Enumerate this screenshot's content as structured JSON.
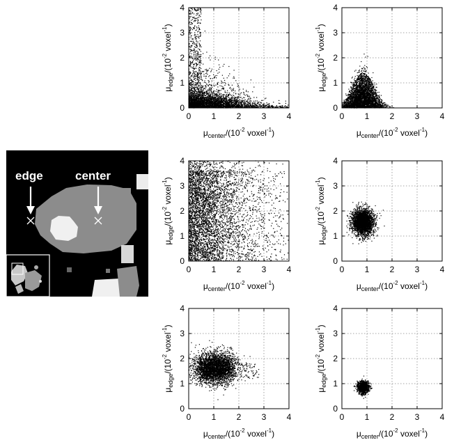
{
  "image_panel": {
    "annotations": {
      "edge_label": "edge",
      "center_label": "center"
    }
  },
  "chart_data": [
    {
      "type": "scatter",
      "xlabel_main": "μ",
      "xlabel_sub": "center",
      "xlabel_unit": "/(10",
      "xlabel_exp": "-2",
      "xlabel_unit2": " voxel",
      "xlabel_exp2": "-1",
      "xlabel_close": ")",
      "ylabel_main": "μ",
      "ylabel_sub": "edge",
      "ylabel_unit": "/(10",
      "ylabel_exp": "-2",
      "ylabel_unit2": " voxel",
      "ylabel_exp2": "-1",
      "ylabel_close": ")",
      "xlim": [
        0,
        4
      ],
      "ylim": [
        0,
        4
      ],
      "xticks": [
        "0",
        "1",
        "2",
        "3",
        "4"
      ],
      "yticks": [
        "0",
        "1",
        "2",
        "3",
        "4"
      ],
      "grid": true,
      "points_count": 4000,
      "distribution": {
        "kind": "corner",
        "x_spread": 1.3,
        "y_spread": 0.55
      }
    },
    {
      "type": "scatter",
      "xlabel_main": "μ",
      "xlabel_sub": "center",
      "xlabel_unit": "/(10",
      "xlabel_exp": "-2",
      "xlabel_unit2": " voxel",
      "xlabel_exp2": "-1",
      "xlabel_close": ")",
      "ylabel_main": "μ",
      "ylabel_sub": "edge",
      "ylabel_unit": "/(10",
      "ylabel_exp": "-2",
      "ylabel_unit2": " voxel",
      "ylabel_exp2": "-1",
      "ylabel_close": ")",
      "xlim": [
        0,
        4
      ],
      "ylim": [
        0,
        4
      ],
      "xticks": [
        "0",
        "1",
        "2",
        "3",
        "4"
      ],
      "yticks": [
        "0",
        "1",
        "2",
        "3",
        "4"
      ],
      "grid": true,
      "points_count": 3500,
      "distribution": {
        "kind": "mound",
        "x_center": 0.85,
        "x_spread": 0.7,
        "y_max": 1.4
      }
    },
    {
      "type": "scatter",
      "xlabel_main": "μ",
      "xlabel_sub": "center",
      "xlabel_unit": "/(10",
      "xlabel_exp": "-2",
      "xlabel_unit2": " voxel",
      "xlabel_exp2": "-1",
      "xlabel_close": ")",
      "ylabel_main": "μ",
      "ylabel_sub": "edge",
      "ylabel_unit": "/(10",
      "ylabel_exp": "-2",
      "ylabel_unit2": " voxel",
      "ylabel_exp2": "-1",
      "ylabel_close": ")",
      "xlim": [
        0,
        4
      ],
      "ylim": [
        0,
        4
      ],
      "xticks": [
        "0",
        "1",
        "2",
        "3",
        "4"
      ],
      "yticks": [
        "0",
        "1",
        "2",
        "3",
        "4"
      ],
      "grid": true,
      "points_count": 4500,
      "distribution": {
        "kind": "band",
        "x_range": [
          0,
          2
        ],
        "y_range": [
          0,
          4
        ]
      }
    },
    {
      "type": "scatter",
      "xlabel_main": "μ",
      "xlabel_sub": "center",
      "xlabel_unit": "/(10",
      "xlabel_exp": "-2",
      "xlabel_unit2": " voxel",
      "xlabel_exp2": "-1",
      "xlabel_close": ")",
      "ylabel_main": "μ",
      "ylabel_sub": "edge",
      "ylabel_unit": "/(10",
      "ylabel_exp": "-2",
      "ylabel_unit2": " voxel",
      "ylabel_exp2": "-1",
      "ylabel_close": ")",
      "xlim": [
        0,
        4
      ],
      "ylim": [
        0,
        4
      ],
      "xticks": [
        "0",
        "1",
        "2",
        "3",
        "4"
      ],
      "yticks": [
        "0",
        "1",
        "2",
        "3",
        "4"
      ],
      "grid": true,
      "points_count": 3000,
      "distribution": {
        "kind": "blob",
        "x_center": 0.85,
        "y_center": 1.55,
        "x_sd": 0.22,
        "y_sd": 0.25
      }
    },
    {
      "type": "scatter",
      "xlabel_main": "μ",
      "xlabel_sub": "center",
      "xlabel_unit": "/(10",
      "xlabel_exp": "-2",
      "xlabel_unit2": " voxel",
      "xlabel_exp2": "-1",
      "xlabel_close": ")",
      "ylabel_main": "μ",
      "ylabel_sub": "edge",
      "ylabel_unit": "/(10",
      "ylabel_exp": "-2",
      "ylabel_unit2": " voxel",
      "ylabel_exp2": "-1",
      "ylabel_close": ")",
      "xlim": [
        0,
        4
      ],
      "ylim": [
        0,
        4
      ],
      "xticks": [
        "0",
        "1",
        "2",
        "3",
        "4"
      ],
      "yticks": [
        "0",
        "1",
        "2",
        "3",
        "4"
      ],
      "grid": true,
      "points_count": 3500,
      "distribution": {
        "kind": "twin",
        "x_centers": [
          0.75,
          1.35
        ],
        "y_center": 1.6,
        "x_sd": 0.3,
        "y_sd": 0.3
      }
    },
    {
      "type": "scatter",
      "xlabel_main": "μ",
      "xlabel_sub": "center",
      "xlabel_unit": "/(10",
      "xlabel_exp": "-2",
      "xlabel_unit2": " voxel",
      "xlabel_exp2": "-1",
      "xlabel_close": ")",
      "ylabel_main": "μ",
      "ylabel_sub": "edge",
      "ylabel_unit": "/(10",
      "ylabel_exp": "-2",
      "ylabel_unit2": " voxel",
      "ylabel_exp2": "-1",
      "ylabel_close": ")",
      "xlim": [
        0,
        4
      ],
      "ylim": [
        0,
        4
      ],
      "xticks": [
        "0",
        "1",
        "2",
        "3",
        "4"
      ],
      "yticks": [
        "0",
        "1",
        "2",
        "3",
        "4"
      ],
      "grid": true,
      "points_count": 1200,
      "distribution": {
        "kind": "blob",
        "x_center": 0.85,
        "y_center": 0.85,
        "x_sd": 0.11,
        "y_sd": 0.12
      }
    }
  ]
}
